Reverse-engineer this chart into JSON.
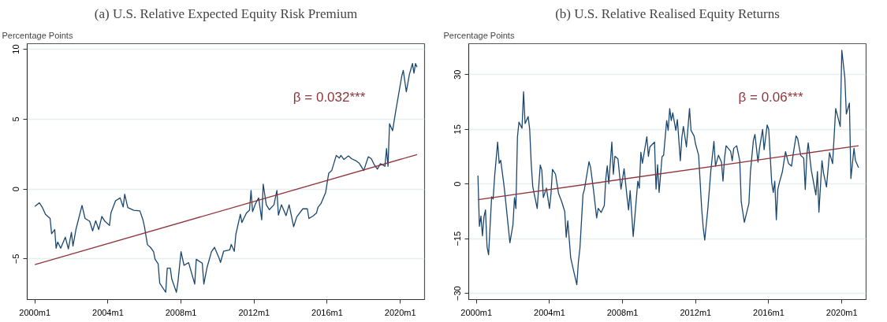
{
  "chart_data": [
    {
      "type": "line",
      "title": "(a) U.S. Relative Expected Equity Risk Premium",
      "ylabel": "Percentage Points",
      "annotations": [
        "β = 0.032***"
      ],
      "xlim": [
        "1999-08",
        "2021-05"
      ],
      "ylim": [
        -7.9,
        10.4
      ],
      "xticks": [
        {
          "value": "2000-01",
          "label": "2000m1"
        },
        {
          "value": "2004-01",
          "label": "2004m1"
        },
        {
          "value": "2008-01",
          "label": "2008m1"
        },
        {
          "value": "2012-01",
          "label": "2012m1"
        },
        {
          "value": "2016-01",
          "label": "2016m1"
        },
        {
          "value": "2020-01",
          "label": "2020m1"
        }
      ],
      "yticks": [
        -5,
        0,
        5,
        10
      ],
      "grid": "y",
      "series": [
        {
          "color": "#1a476f",
          "x": [
            "2000-01",
            "2000-04",
            "2000-06",
            "2000-08",
            "2000-11",
            "2000-12",
            "2001-02",
            "2001-03",
            "2001-04",
            "2001-06",
            "2001-09",
            "2001-11",
            "2002-01",
            "2002-02",
            "2002-04",
            "2002-08",
            "2002-10",
            "2003-01",
            "2003-03",
            "2003-05",
            "2003-07",
            "2003-09",
            "2003-11",
            "2004-02",
            "2004-03",
            "2004-06",
            "2004-09",
            "2004-11",
            "2004-12",
            "2005-02",
            "2005-06",
            "2005-10",
            "2005-12",
            "2006-01",
            "2006-03",
            "2006-05",
            "2006-07",
            "2006-08",
            "2006-10",
            "2006-11",
            "2007-03",
            "2007-04",
            "2007-06",
            "2007-07",
            "2007-10",
            "2007-11",
            "2008-01",
            "2008-03",
            "2008-06",
            "2008-10",
            "2008-11",
            "2009-03",
            "2009-04",
            "2009-06",
            "2009-09",
            "2009-11",
            "2010-02",
            "2010-03",
            "2010-05",
            "2010-09",
            "2010-10",
            "2010-12",
            "2011-01",
            "2011-04",
            "2011-05",
            "2011-08",
            "2011-10",
            "2011-11",
            "2011-12",
            "2012-02",
            "2012-04",
            "2012-06",
            "2012-07",
            "2012-09",
            "2012-11",
            "2013-02",
            "2013-04",
            "2013-05",
            "2013-07",
            "2013-10",
            "2013-12",
            "2014-03",
            "2014-05",
            "2014-09",
            "2014-12",
            "2015-01",
            "2015-04",
            "2015-06",
            "2015-07",
            "2015-09",
            "2015-12",
            "2016-02",
            "2016-04",
            "2016-07",
            "2016-09",
            "2016-10",
            "2016-12",
            "2017-03",
            "2017-05",
            "2017-08",
            "2017-10",
            "2018-01",
            "2018-04",
            "2018-06",
            "2018-08",
            "2018-10",
            "2018-12",
            "2019-03",
            "2019-04",
            "2019-05",
            "2019-06",
            "2019-08",
            "2019-10",
            "2019-12",
            "2020-02",
            "2020-03",
            "2020-05",
            "2020-07",
            "2020-09",
            "2020-10",
            "2020-11",
            "2020-12"
          ],
          "values": [
            -1.24,
            -0.98,
            -1.32,
            -1.81,
            -2.1,
            -3.19,
            -2.89,
            -4.23,
            -3.78,
            -4.23,
            -3.44,
            -4.27,
            -3.09,
            -4.07,
            -2.89,
            -1.16,
            -2.1,
            -2.3,
            -2.99,
            -2.26,
            -2.89,
            -1.95,
            -2.3,
            -2.6,
            -1.71,
            -0.83,
            -0.63,
            -1.28,
            -0.37,
            -1.32,
            -1.52,
            -1.56,
            -2.2,
            -2.7,
            -3.98,
            -4.17,
            -4.47,
            -5.02,
            -5.35,
            -6.73,
            -7.38,
            -5.65,
            -5.65,
            -6.44,
            -7.38,
            -6.63,
            -4.47,
            -5.45,
            -5.26,
            -6.79,
            -5.02,
            -5.3,
            -6.79,
            -5.65,
            -4.47,
            -4.17,
            -4.94,
            -5.24,
            -4.45,
            -4.35,
            -3.96,
            -4.45,
            -3.24,
            -1.8,
            -2.39,
            -1.71,
            -1.51,
            -0.1,
            -1.61,
            -1.02,
            -0.63,
            -2.2,
            0.35,
            -1.12,
            -1.47,
            -1.12,
            -0.1,
            -1.86,
            -1.12,
            -1.9,
            -1.12,
            -2.69,
            -2.0,
            -1.41,
            -1.41,
            -2.1,
            -1.9,
            -1.71,
            -1.31,
            -1.02,
            -0.24,
            1.14,
            1.33,
            2.41,
            2.22,
            2.41,
            2.12,
            2.37,
            2.18,
            2.02,
            1.86,
            1.33,
            2.31,
            2.18,
            1.73,
            1.43,
            1.82,
            1.63,
            2.9,
            1.63,
            4.67,
            4.18,
            5.55,
            6.82,
            8.1,
            8.49,
            6.96,
            8.2,
            8.98,
            8.29,
            8.98,
            8.73
          ]
        },
        {
          "color": "#90353b",
          "x": [
            "2000-01",
            "2020-12"
          ],
          "values": [
            -5.4,
            2.47
          ]
        }
      ]
    },
    {
      "type": "line",
      "title": "(b) U.S. Relative Realised Equity Returns",
      "ylabel": "Percentage Points",
      "annotations": [
        "β = 0.06***"
      ],
      "xlim": [
        "1999-08",
        "2021-05"
      ],
      "ylim": [
        -31.7,
        38.5
      ],
      "xticks": [
        {
          "value": "2000-01",
          "label": "2000m1"
        },
        {
          "value": "2004-01",
          "label": "2004m1"
        },
        {
          "value": "2008-01",
          "label": "2008m1"
        },
        {
          "value": "2012-01",
          "label": "2012m1"
        },
        {
          "value": "2016-01",
          "label": "2016m1"
        },
        {
          "value": "2020-01",
          "label": "2020m1"
        }
      ],
      "yticks": [
        -30,
        -15,
        0,
        15,
        30
      ],
      "grid": "y",
      "series": [
        {
          "color": "#1a476f",
          "x": [
            "2000-02",
            "2000-03",
            "2000-04",
            "2000-05",
            "2000-06",
            "2000-07",
            "2000-08",
            "2000-09",
            "2000-11",
            "2000-12",
            "2001-01",
            "2001-03",
            "2001-04",
            "2001-05",
            "2001-07",
            "2001-08",
            "2001-11",
            "2002-01",
            "2002-02",
            "2002-03",
            "2002-04",
            "2002-05",
            "2002-07",
            "2002-08",
            "2002-09",
            "2002-11",
            "2002-12",
            "2003-01",
            "2003-02",
            "2003-03",
            "2003-05",
            "2003-07",
            "2003-08",
            "2003-09",
            "2003-11",
            "2004-01",
            "2004-02",
            "2004-03",
            "2004-05",
            "2004-07",
            "2004-09",
            "2004-11",
            "2004-12",
            "2005-01",
            "2005-03",
            "2005-05",
            "2005-07",
            "2005-08",
            "2005-09",
            "2005-11",
            "2005-12",
            "2006-03",
            "2006-04",
            "2006-06",
            "2006-08",
            "2006-09",
            "2006-11",
            "2007-01",
            "2007-02",
            "2007-03",
            "2007-04",
            "2007-06",
            "2007-07",
            "2007-08",
            "2007-10",
            "2007-12",
            "2008-02",
            "2008-04",
            "2008-05",
            "2008-06",
            "2008-08",
            "2008-11",
            "2008-12",
            "2009-01",
            "2009-02",
            "2009-05",
            "2009-06",
            "2009-07",
            "2009-10",
            "2009-11",
            "2009-12",
            "2010-01",
            "2010-03",
            "2010-04",
            "2010-06",
            "2010-07",
            "2010-08",
            "2010-09",
            "2010-10",
            "2010-12",
            "2011-01",
            "2011-03",
            "2011-04",
            "2011-05",
            "2011-07",
            "2011-09",
            "2011-10",
            "2011-12",
            "2012-01",
            "2012-03",
            "2012-05",
            "2012-06",
            "2012-07",
            "2012-09",
            "2012-11",
            "2013-01",
            "2013-02",
            "2013-04",
            "2013-06",
            "2013-07",
            "2013-08",
            "2013-09",
            "2013-12",
            "2014-01",
            "2014-02",
            "2014-04",
            "2014-06",
            "2014-07",
            "2014-09",
            "2014-12",
            "2015-01",
            "2015-03",
            "2015-04",
            "2015-06",
            "2015-07",
            "2015-09",
            "2015-10",
            "2015-12",
            "2016-01",
            "2016-03",
            "2016-04",
            "2016-05",
            "2016-06",
            "2016-07",
            "2016-08",
            "2016-10",
            "2016-12",
            "2017-02",
            "2017-04",
            "2017-05",
            "2017-07",
            "2017-08",
            "2017-10",
            "2017-12",
            "2018-01",
            "2018-02",
            "2018-03",
            "2018-05",
            "2018-08",
            "2018-09",
            "2018-10",
            "2018-12",
            "2019-01",
            "2019-03",
            "2019-05",
            "2019-07",
            "2019-09",
            "2019-12",
            "2020-01",
            "2020-03",
            "2020-04",
            "2020-06",
            "2020-07",
            "2020-09",
            "2020-10",
            "2020-12"
          ],
          "values": [
            2.3,
            -11.6,
            -8.8,
            -14.2,
            -9.0,
            -7.1,
            -17.2,
            -19.4,
            -3.5,
            -4.1,
            2.3,
            11.5,
            5.7,
            6.5,
            0.2,
            -3.7,
            -16.1,
            -11.2,
            -3.7,
            -6.7,
            12.9,
            17.0,
            15.3,
            25.3,
            16.6,
            18.5,
            15.1,
            5.7,
            -0.7,
            -2.6,
            -6.7,
            5.2,
            3.8,
            -3.7,
            -1.1,
            -6.7,
            -2.6,
            4.0,
            2.7,
            -2.6,
            -4.8,
            -7.5,
            -14.6,
            -10.1,
            -20.3,
            -24.0,
            -27.6,
            -21.4,
            -17.6,
            -2.9,
            -1.4,
            6.1,
            4.6,
            -1.8,
            -9.3,
            -6.7,
            -7.8,
            -5.9,
            1.6,
            5.0,
            0.1,
            11.5,
            2.7,
            7.6,
            6.9,
            -1.4,
            4.2,
            -3.7,
            -7.1,
            -1.8,
            -14.4,
            0.8,
            -1.1,
            8.7,
            5.7,
            13.0,
            7.6,
            10.2,
            11.5,
            -1.4,
            5.3,
            -2.3,
            7.5,
            7.9,
            17.4,
            14.7,
            20.7,
            17.4,
            19.5,
            14.7,
            17.7,
            6.4,
            12.8,
            15.8,
            10.2,
            20.7,
            14.7,
            13.2,
            10.9,
            7.9,
            -6.8,
            -12.0,
            -15.4,
            -6.8,
            3.8,
            11.7,
            4.9,
            7.9,
            6.0,
            0.8,
            7.1,
            10.5,
            9.0,
            6.4,
            9.8,
            10.5,
            6.4,
            -4.9,
            -10.5,
            -5.3,
            3.4,
            12.0,
            13.6,
            6.0,
            9.8,
            15.0,
            9.4,
            16.2,
            15.0,
            0.4,
            -2.3,
            0.8,
            -9.8,
            -1.5,
            0.4,
            3.4,
            8.9,
            5.6,
            4.9,
            7.9,
            13.2,
            12.5,
            7.9,
            7.1,
            -1.5,
            7.9,
            11.3,
            3.8,
            -3.0,
            3.4,
            -7.7,
            6.4,
            3.0,
            -0.8,
            8.6,
            5.6,
            20.7,
            15.8,
            36.7,
            29.3,
            19.2,
            22.2,
            1.5,
            9.8,
            6.4,
            4.5
          ]
        },
        {
          "color": "#90353b",
          "x": [
            "2000-02",
            "2020-12"
          ],
          "values": [
            -4.3,
            10.5
          ]
        }
      ]
    }
  ]
}
